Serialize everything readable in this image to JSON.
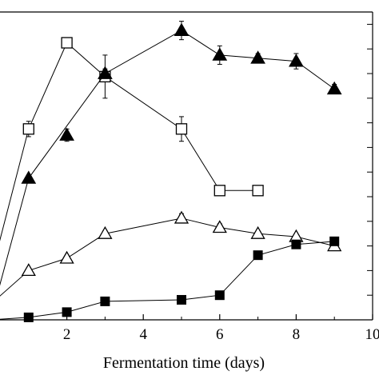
{
  "chart_data": {
    "type": "line",
    "xlabel": "Fermentation time (days)",
    "xlim": [
      0,
      10
    ],
    "ylim": [
      0,
      100
    ],
    "x_ticks": [
      2,
      4,
      6,
      8,
      10
    ],
    "grid": false,
    "legend": "none",
    "series": [
      {
        "marker": "open-square",
        "x": [
          0,
          1,
          2,
          3,
          5,
          6,
          7
        ],
        "y": [
          14,
          62,
          90,
          79,
          62,
          42,
          42
        ],
        "err": [
          0,
          2.5,
          0,
          7,
          4,
          1.2,
          0
        ]
      },
      {
        "marker": "filled-triangle",
        "x": [
          0,
          1,
          3,
          5,
          6,
          7,
          8,
          9
        ],
        "y": [
          0,
          46,
          80,
          94,
          86,
          85,
          84,
          75
        ],
        "err": [
          0,
          1,
          1.5,
          3,
          3,
          1.5,
          2.5,
          1.5
        ]
      },
      {
        "marker": "filled-triangle",
        "x": [
          2
        ],
        "y": [
          60
        ],
        "err": [
          2
        ]
      },
      {
        "marker": "open-triangle",
        "x": [
          0,
          1,
          2,
          3,
          5,
          6,
          7,
          8,
          9
        ],
        "y": [
          5,
          16,
          20,
          28,
          33,
          30,
          28,
          27,
          24
        ],
        "err": [
          0,
          0.8,
          0.8,
          1,
          1.5,
          1.2,
          0.8,
          0.8,
          1
        ]
      },
      {
        "marker": "filled-square",
        "x": [
          0,
          1,
          2,
          3,
          5,
          6,
          7,
          8,
          9
        ],
        "y": [
          0,
          0.8,
          2.5,
          6,
          6.5,
          8,
          21,
          24.5,
          25.5
        ],
        "err": [
          0,
          0,
          0,
          0,
          0,
          0,
          0.5,
          0.5,
          0.5
        ]
      }
    ]
  }
}
